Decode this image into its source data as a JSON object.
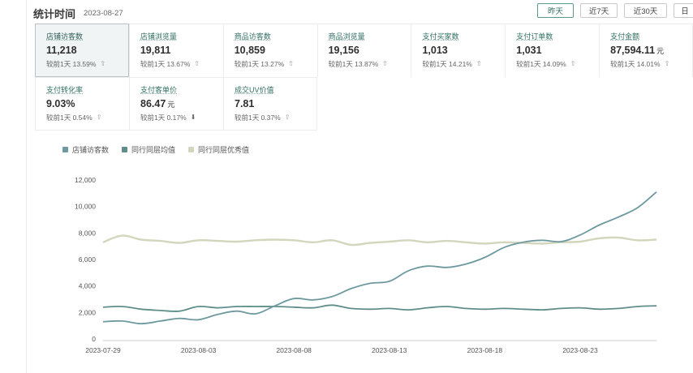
{
  "header": {
    "title": "统计时间",
    "date": "2023-08-27"
  },
  "range_tabs": [
    {
      "label": "昨天",
      "active": true
    },
    {
      "label": "近7天",
      "active": false
    },
    {
      "label": "近30天",
      "active": false
    },
    {
      "label": "日",
      "active": false
    }
  ],
  "metrics": [
    {
      "label": "店铺访客数",
      "value": "11,218",
      "unit": "",
      "compare": "较前1天 13.59%",
      "trend": "up",
      "active": true
    },
    {
      "label": "店铺浏览量",
      "value": "19,811",
      "unit": "",
      "compare": "较前1天 13.67%",
      "trend": "up",
      "active": false
    },
    {
      "label": "商品访客数",
      "value": "10,859",
      "unit": "",
      "compare": "较前1天 13.27%",
      "trend": "up",
      "active": false
    },
    {
      "label": "商品浏览量",
      "value": "19,156",
      "unit": "",
      "compare": "较前1天 13.87%",
      "trend": "up",
      "active": false
    },
    {
      "label": "支付买家数",
      "value": "1,013",
      "unit": "",
      "compare": "较前1天 14.21%",
      "trend": "up",
      "active": false
    },
    {
      "label": "支付订单数",
      "value": "1,031",
      "unit": "",
      "compare": "较前1天 14.09%",
      "trend": "up",
      "active": false
    },
    {
      "label": "支付金额",
      "value": "87,594.11",
      "unit": "元",
      "compare": "较前1天 14.01%",
      "trend": "up",
      "active": false
    },
    {
      "label": "支付转化率",
      "value": "9.03%",
      "unit": "",
      "compare": "较前1天 0.54%",
      "trend": "up",
      "active": false
    },
    {
      "label": "支付客单价",
      "value": "86.47",
      "unit": "元",
      "compare": "较前1天 0.17%",
      "trend": "down",
      "active": false
    },
    {
      "label": "成交UV价值",
      "value": "7.81",
      "unit": "",
      "compare": "较前1天 0.37%",
      "trend": "up",
      "active": false
    }
  ],
  "chart_data": {
    "type": "line",
    "x": [
      "2023-07-29",
      "2023-07-30",
      "2023-07-31",
      "2023-08-01",
      "2023-08-02",
      "2023-08-03",
      "2023-08-04",
      "2023-08-05",
      "2023-08-06",
      "2023-08-07",
      "2023-08-08",
      "2023-08-09",
      "2023-08-10",
      "2023-08-11",
      "2023-08-12",
      "2023-08-13",
      "2023-08-14",
      "2023-08-15",
      "2023-08-16",
      "2023-08-17",
      "2023-08-18",
      "2023-08-19",
      "2023-08-20",
      "2023-08-21",
      "2023-08-22",
      "2023-08-23",
      "2023-08-24",
      "2023-08-25",
      "2023-08-26",
      "2023-08-27"
    ],
    "xticks": [
      "2023-07-29",
      "2023-08-03",
      "2023-08-08",
      "2023-08-13",
      "2023-08-18",
      "2023-08-23"
    ],
    "yticks": [
      0,
      2000,
      4000,
      6000,
      8000,
      10000,
      12000
    ],
    "ytick_labels": [
      "0",
      "2,000",
      "4,000",
      "6,000",
      "8,000",
      "10,000",
      "12,000"
    ],
    "ylim": [
      0,
      12000
    ],
    "grid": false,
    "legend_position": "top-left",
    "series": [
      {
        "name": "店铺访客数",
        "color": "#6e9a9f",
        "values": [
          1300,
          1350,
          1150,
          1350,
          1550,
          1450,
          1850,
          2100,
          1900,
          2500,
          3050,
          2950,
          3200,
          3800,
          4200,
          4350,
          5150,
          5500,
          5400,
          5650,
          6150,
          6900,
          7300,
          7450,
          7350,
          7850,
          8600,
          9200,
          9900,
          11100
        ]
      },
      {
        "name": "同行同层均值",
        "color": "#5f8e8a",
        "values": [
          2400,
          2450,
          2250,
          2150,
          2100,
          2450,
          2350,
          2450,
          2450,
          2450,
          2400,
          2350,
          2550,
          2300,
          2250,
          2300,
          2200,
          2350,
          2450,
          2300,
          2250,
          2300,
          2250,
          2200,
          2300,
          2350,
          2250,
          2300,
          2450,
          2500
        ]
      },
      {
        "name": "同行同层优秀值",
        "color": "#d2d6bc",
        "values": [
          7300,
          7800,
          7500,
          7400,
          7250,
          7450,
          7400,
          7350,
          7450,
          7500,
          7450,
          7300,
          7450,
          7100,
          7250,
          7350,
          7450,
          7300,
          7400,
          7300,
          7200,
          7300,
          7250,
          7200,
          7300,
          7350,
          7600,
          7650,
          7450,
          7500
        ]
      }
    ]
  }
}
